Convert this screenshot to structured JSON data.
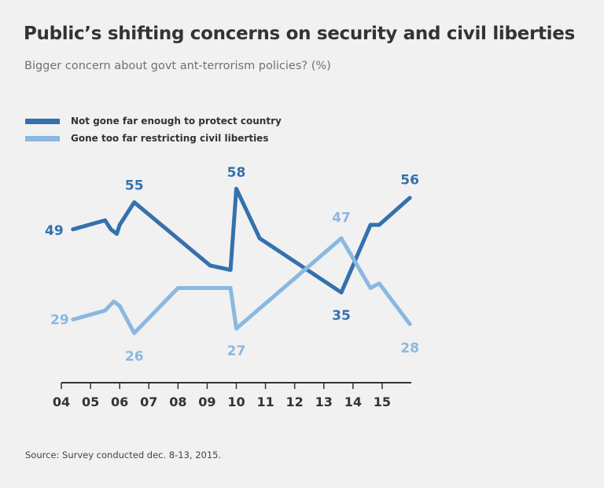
{
  "title": "Public’s shifting concerns on security and civil liberties",
  "subtitle": "Bigger concern about govt ant-terrorism policies? (%)",
  "source": "Source: Survey conducted dec. 8-13, 2015.",
  "colors": {
    "dark": "#3471ad",
    "light": "#8bb8e0",
    "axis": "#333333",
    "tick_text": "#333333"
  },
  "chart_data": {
    "type": "line",
    "title": "Public’s shifting concerns on security and civil liberties",
    "subtitle": "Bigger concern about govt ant-terrorism policies? (%)",
    "xlabel": "",
    "ylabel": "",
    "x_ticks": [
      "04",
      "05",
      "06",
      "07",
      "08",
      "09",
      "10",
      "11",
      "12",
      "13",
      "14",
      "15"
    ],
    "xlim": [
      2004,
      2016
    ],
    "ylim": [
      15,
      65
    ],
    "grid": false,
    "legend_position": "top-left",
    "series": [
      {
        "name": "Not gone far enough to protect country",
        "color": "#3471ad",
        "x": [
          2004.4,
          2005.5,
          2005.7,
          2005.9,
          2006.0,
          2006.5,
          2009.1,
          2009.8,
          2010.0,
          2010.8,
          2013.6,
          2014.6,
          2014.9,
          2015.95
        ],
        "y": [
          49,
          51,
          49,
          48,
          50,
          55,
          41,
          40,
          58,
          47,
          35,
          50,
          50,
          56
        ]
      },
      {
        "name": "Gone too far restricting civil liberties",
        "color": "#8bb8e0",
        "x": [
          2004.4,
          2005.5,
          2005.8,
          2006.0,
          2006.5,
          2008.0,
          2009.8,
          2010.0,
          2013.6,
          2014.6,
          2014.9,
          2015.95
        ],
        "y": [
          29,
          31,
          33,
          32,
          26,
          36,
          36,
          27,
          47,
          36,
          37,
          28
        ]
      }
    ],
    "data_labels": [
      {
        "series": 0,
        "x": 2004.4,
        "y": 49,
        "text": "49"
      },
      {
        "series": 0,
        "x": 2006.5,
        "y": 55,
        "text": "55"
      },
      {
        "series": 0,
        "x": 2010.0,
        "y": 58,
        "text": "58"
      },
      {
        "series": 0,
        "x": 2015.95,
        "y": 56,
        "text": "56"
      },
      {
        "series": 1,
        "x": 2004.4,
        "y": 29,
        "text": "29"
      },
      {
        "series": 1,
        "x": 2006.5,
        "y": 26,
        "text": "26"
      },
      {
        "series": 1,
        "x": 2010.0,
        "y": 27,
        "text": "27"
      },
      {
        "series": 1,
        "x": 2013.6,
        "y": 47,
        "text": "47"
      },
      {
        "series": 0,
        "x": 2013.6,
        "y": 35,
        "text": "35"
      },
      {
        "series": 1,
        "x": 2015.95,
        "y": 28,
        "text": "28"
      }
    ]
  }
}
